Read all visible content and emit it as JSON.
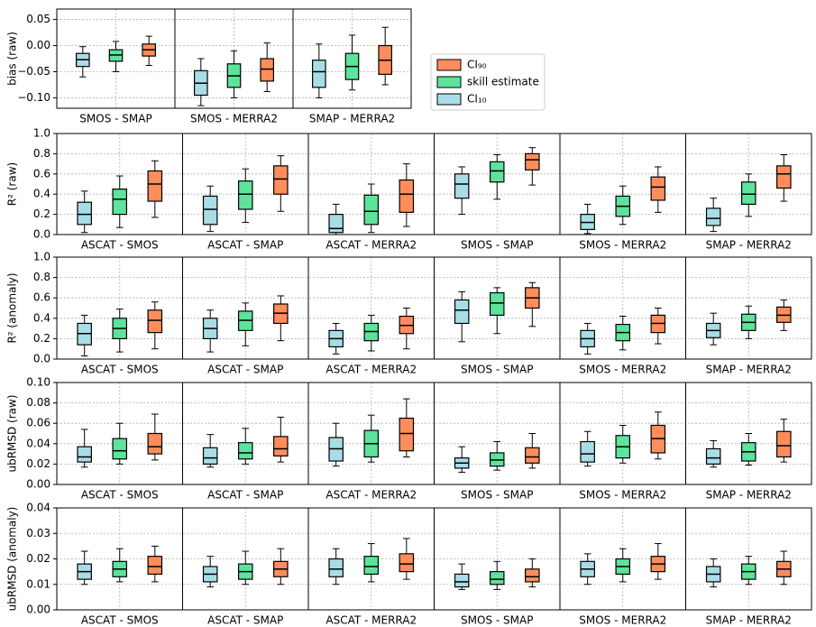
{
  "chart_data": [
    {
      "type": "box",
      "ylabel": "bias (raw)",
      "ylim": [
        -0.12,
        0.07
      ],
      "yticks": [
        {
          "value": -0.1,
          "label": "−0.10"
        },
        {
          "value": -0.05,
          "label": "−0.05"
        },
        {
          "value": 0,
          "label": "0.00"
        },
        0.05
      ],
      "grid": true,
      "categories": [
        "SMOS - SMAP",
        "SMOS - MERRA2",
        "SMAP - MERRA2"
      ],
      "series": [
        {
          "name": "CI₁₀",
          "color": "#a8dde6",
          "values": [
            [
              -0.06,
              -0.04,
              -0.027,
              -0.015,
              -0.002
            ],
            [
              -0.115,
              -0.095,
              -0.072,
              -0.048,
              -0.025
            ],
            [
              -0.1,
              -0.08,
              -0.05,
              -0.028,
              0.003
            ]
          ]
        },
        {
          "name": "skill estimate",
          "color": "#5de39b",
          "values": [
            [
              -0.05,
              -0.03,
              -0.018,
              -0.008,
              0.008
            ],
            [
              -0.1,
              -0.08,
              -0.058,
              -0.035,
              -0.01
            ],
            [
              -0.085,
              -0.065,
              -0.04,
              -0.015,
              0.02
            ]
          ]
        },
        {
          "name": "CI₉₀",
          "color": "#ff8d5c",
          "values": [
            [
              -0.038,
              -0.02,
              -0.008,
              0.003,
              0.018
            ],
            [
              -0.088,
              -0.068,
              -0.045,
              -0.025,
              0.005
            ],
            [
              -0.075,
              -0.055,
              -0.028,
              0.0,
              0.035
            ]
          ]
        }
      ]
    },
    {
      "type": "box",
      "ylabel": "R² (raw)",
      "ylim": [
        0,
        1
      ],
      "yticks": [
        {
          "value": 0,
          "label": "0.0"
        },
        0.2,
        0.4,
        0.6,
        0.8,
        {
          "value": 1,
          "label": "1.0"
        }
      ],
      "grid": true,
      "categories": [
        "ASCAT - SMOS",
        "ASCAT - SMAP",
        "ASCAT - MERRA2",
        "SMOS - SMAP",
        "SMOS - MERRA2",
        "SMAP - MERRA2"
      ],
      "series": [
        {
          "color": "#a8dde6",
          "values": [
            [
              0.02,
              0.1,
              0.2,
              0.32,
              0.43
            ],
            [
              0.03,
              0.1,
              0.25,
              0.38,
              0.48
            ],
            [
              0,
              0.02,
              0.06,
              0.2,
              0.3
            ],
            [
              0.2,
              0.36,
              0.5,
              0.6,
              0.67
            ],
            [
              0.01,
              0.05,
              0.12,
              0.2,
              0.3
            ],
            [
              0.03,
              0.09,
              0.16,
              0.26,
              0.36
            ]
          ]
        },
        {
          "color": "#5de39b",
          "values": [
            [
              0.07,
              0.2,
              0.35,
              0.45,
              0.58
            ],
            [
              0.12,
              0.25,
              0.4,
              0.53,
              0.65
            ],
            [
              0.02,
              0.1,
              0.23,
              0.39,
              0.5
            ],
            [
              0.35,
              0.52,
              0.63,
              0.72,
              0.79
            ],
            [
              0.1,
              0.18,
              0.28,
              0.38,
              0.48
            ],
            [
              0.18,
              0.3,
              0.4,
              0.52,
              0.6
            ]
          ]
        },
        {
          "color": "#ff8d5c",
          "values": [
            [
              0.17,
              0.33,
              0.5,
              0.63,
              0.73
            ],
            [
              0.23,
              0.4,
              0.55,
              0.68,
              0.78
            ],
            [
              0.08,
              0.22,
              0.4,
              0.54,
              0.7
            ],
            [
              0.49,
              0.64,
              0.74,
              0.8,
              0.86
            ],
            [
              0.22,
              0.34,
              0.47,
              0.57,
              0.67
            ],
            [
              0.33,
              0.46,
              0.6,
              0.68,
              0.79
            ]
          ]
        }
      ]
    },
    {
      "type": "box",
      "ylabel": "R² (anomaly)",
      "ylim": [
        0,
        1
      ],
      "yticks": [
        {
          "value": 0,
          "label": "0.0"
        },
        0.2,
        0.4,
        0.6,
        0.8,
        {
          "value": 1,
          "label": "1.0"
        }
      ],
      "grid": true,
      "categories": [
        "ASCAT - SMOS",
        "ASCAT - SMAP",
        "ASCAT - MERRA2",
        "SMOS - SMAP",
        "SMOS - MERRA2",
        "SMAP - MERRA2"
      ],
      "series": [
        {
          "color": "#a8dde6",
          "values": [
            [
              0.03,
              0.14,
              0.25,
              0.35,
              0.43
            ],
            [
              0.07,
              0.2,
              0.3,
              0.4,
              0.48
            ],
            [
              0.05,
              0.12,
              0.2,
              0.28,
              0.35
            ],
            [
              0.17,
              0.35,
              0.48,
              0.58,
              0.66
            ],
            [
              0.05,
              0.12,
              0.2,
              0.28,
              0.35
            ],
            [
              0.14,
              0.21,
              0.28,
              0.35,
              0.45
            ]
          ]
        },
        {
          "color": "#5de39b",
          "values": [
            [
              0.07,
              0.2,
              0.3,
              0.4,
              0.49
            ],
            [
              0.13,
              0.28,
              0.38,
              0.47,
              0.55
            ],
            [
              0.08,
              0.18,
              0.27,
              0.35,
              0.43
            ],
            [
              0.25,
              0.43,
              0.55,
              0.65,
              0.7
            ],
            [
              0.09,
              0.18,
              0.26,
              0.34,
              0.42
            ],
            [
              0.2,
              0.28,
              0.36,
              0.44,
              0.52
            ]
          ]
        },
        {
          "color": "#ff8d5c",
          "values": [
            [
              0.1,
              0.26,
              0.38,
              0.48,
              0.56
            ],
            [
              0.18,
              0.35,
              0.45,
              0.54,
              0.62
            ],
            [
              0.1,
              0.25,
              0.33,
              0.42,
              0.5
            ],
            [
              0.32,
              0.5,
              0.6,
              0.7,
              0.75
            ],
            [
              0.15,
              0.26,
              0.35,
              0.43,
              0.5
            ],
            [
              0.28,
              0.36,
              0.43,
              0.51,
              0.58
            ]
          ]
        }
      ]
    },
    {
      "type": "box",
      "ylabel": "ubRMSD (raw)",
      "ylim": [
        0,
        0.1
      ],
      "yticks": [
        {
          "value": 0,
          "label": "0.00"
        },
        0.02,
        0.04,
        0.06,
        0.08,
        {
          "value": 0.1,
          "label": "0.10"
        }
      ],
      "grid": true,
      "categories": [
        "ASCAT - SMOS",
        "ASCAT - SMAP",
        "ASCAT - MERRA2",
        "SMOS - SMAP",
        "SMOS - MERRA2",
        "SMAP - MERRA2"
      ],
      "series": [
        {
          "color": "#a8dde6",
          "values": [
            [
              0.017,
              0.022,
              0.027,
              0.037,
              0.054
            ],
            [
              0.017,
              0.02,
              0.026,
              0.036,
              0.049
            ],
            [
              0.018,
              0.023,
              0.035,
              0.046,
              0.06
            ],
            [
              0.012,
              0.016,
              0.021,
              0.026,
              0.037
            ],
            [
              0.018,
              0.022,
              0.03,
              0.042,
              0.052
            ],
            [
              0.017,
              0.02,
              0.026,
              0.035,
              0.043
            ]
          ]
        },
        {
          "color": "#5de39b",
          "values": [
            [
              0.02,
              0.025,
              0.033,
              0.045,
              0.06
            ],
            [
              0.02,
              0.025,
              0.031,
              0.041,
              0.055
            ],
            [
              0.022,
              0.027,
              0.04,
              0.053,
              0.068
            ],
            [
              0.014,
              0.018,
              0.024,
              0.031,
              0.042
            ],
            [
              0.021,
              0.026,
              0.037,
              0.048,
              0.058
            ],
            [
              0.019,
              0.023,
              0.032,
              0.041,
              0.05
            ]
          ]
        },
        {
          "color": "#ff8d5c",
          "values": [
            [
              0.024,
              0.03,
              0.037,
              0.05,
              0.069
            ],
            [
              0.022,
              0.028,
              0.035,
              0.047,
              0.066
            ],
            [
              0.027,
              0.033,
              0.05,
              0.065,
              0.084
            ],
            [
              0.016,
              0.021,
              0.027,
              0.036,
              0.05
            ],
            [
              0.025,
              0.031,
              0.045,
              0.058,
              0.071
            ],
            [
              0.022,
              0.027,
              0.038,
              0.052,
              0.064
            ]
          ]
        }
      ]
    },
    {
      "type": "box",
      "ylabel": "ubRMSD (anomaly)",
      "ylim": [
        0,
        0.04
      ],
      "yticks": [
        {
          "value": 0,
          "label": "0.00"
        },
        0.01,
        0.02,
        0.03,
        0.04
      ],
      "grid": true,
      "categories": [
        "ASCAT - SMOS",
        "ASCAT - SMAP",
        "ASCAT - MERRA2",
        "SMOS - SMAP",
        "SMOS - MERRA2",
        "SMAP - MERRA2"
      ],
      "series": [
        {
          "color": "#a8dde6",
          "values": [
            [
              0.01,
              0.012,
              0.015,
              0.018,
              0.023
            ],
            [
              0.009,
              0.011,
              0.014,
              0.017,
              0.021
            ],
            [
              0.01,
              0.013,
              0.016,
              0.02,
              0.024
            ],
            [
              0.008,
              0.009,
              0.011,
              0.014,
              0.018
            ],
            [
              0.01,
              0.013,
              0.016,
              0.019,
              0.022
            ],
            [
              0.009,
              0.011,
              0.014,
              0.017,
              0.02
            ]
          ]
        },
        {
          "color": "#5de39b",
          "values": [
            [
              0.011,
              0.013,
              0.016,
              0.019,
              0.024
            ],
            [
              0.01,
              0.012,
              0.015,
              0.018,
              0.023
            ],
            [
              0.011,
              0.014,
              0.017,
              0.021,
              0.026
            ],
            [
              0.008,
              0.01,
              0.012,
              0.015,
              0.019
            ],
            [
              0.011,
              0.014,
              0.017,
              0.02,
              0.024
            ],
            [
              0.01,
              0.012,
              0.015,
              0.018,
              0.021
            ]
          ]
        },
        {
          "color": "#ff8d5c",
          "values": [
            [
              0.011,
              0.014,
              0.017,
              0.021,
              0.025
            ],
            [
              0.01,
              0.013,
              0.016,
              0.019,
              0.024
            ],
            [
              0.012,
              0.015,
              0.018,
              0.022,
              0.028
            ],
            [
              0.009,
              0.011,
              0.013,
              0.016,
              0.02
            ],
            [
              0.012,
              0.015,
              0.018,
              0.021,
              0.026
            ],
            [
              0.01,
              0.013,
              0.016,
              0.019,
              0.023
            ]
          ]
        }
      ]
    }
  ]
}
